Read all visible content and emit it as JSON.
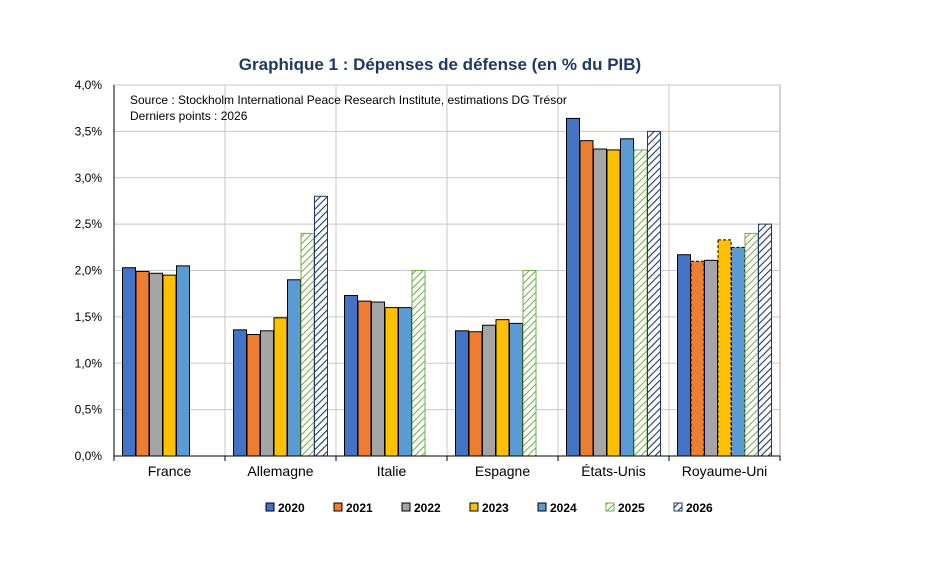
{
  "chart_data": {
    "type": "bar",
    "title": "Graphique 1 : Dépenses de défense (en % du PIB)",
    "source_line": "Source : Stockholm International Peace Research Institute, estimations DG Trésor",
    "last_points_line": "Derniers points : 2026",
    "xlabel": "",
    "ylabel": "",
    "ylim": [
      0,
      4.0
    ],
    "yticks": [
      "0,0%",
      "0,5%",
      "1,0%",
      "1,5%",
      "2,0%",
      "2,5%",
      "3,0%",
      "3,5%",
      "4,0%"
    ],
    "grid": "horizontal",
    "legend_position": "bottom",
    "categories": [
      "France",
      "Allemagne",
      "Italie",
      "Espagne",
      "États-Unis",
      "Royaume-Uni"
    ],
    "series": [
      {
        "name": "2020",
        "color": "#4472c4",
        "pattern": "solid",
        "values": [
          2.03,
          1.36,
          1.73,
          1.35,
          3.64,
          2.17
        ]
      },
      {
        "name": "2021",
        "color": "#ed7d31",
        "pattern": "solid",
        "values": [
          1.99,
          1.31,
          1.67,
          1.34,
          3.4,
          2.1
        ]
      },
      {
        "name": "2022",
        "color": "#a5a5a5",
        "pattern": "solid",
        "values": [
          1.97,
          1.35,
          1.66,
          1.41,
          3.31,
          2.11
        ]
      },
      {
        "name": "2023",
        "color": "#ffc000",
        "pattern": "solid",
        "values": [
          1.95,
          1.49,
          1.6,
          1.47,
          3.3,
          2.33
        ]
      },
      {
        "name": "2024",
        "color": "#5b9bd5",
        "pattern": "solid",
        "values": [
          2.05,
          1.9,
          1.6,
          1.43,
          3.42,
          2.25
        ]
      },
      {
        "name": "2025",
        "color": "#70ad47",
        "pattern": "hatch-light",
        "values": [
          null,
          2.4,
          2.0,
          2.0,
          3.3,
          2.4
        ]
      },
      {
        "name": "2026",
        "color": "#203864",
        "pattern": "hatch-dark",
        "values": [
          null,
          2.8,
          null,
          null,
          3.5,
          2.5
        ]
      }
    ],
    "dashed_outline_bars": [
      {
        "category": "Royaume-Uni",
        "series": [
          "2021",
          "2023",
          "2024"
        ]
      }
    ]
  }
}
